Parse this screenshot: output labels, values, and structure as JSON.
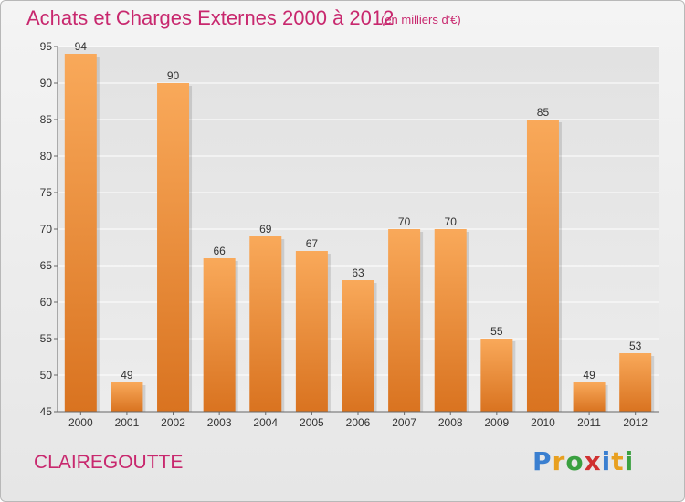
{
  "title": "Achats et Charges Externes 2000 à 2012",
  "unit": "(en milliers d'€)",
  "commune": "CLAIREGOUTTE",
  "logo": {
    "letters": [
      {
        "ch": "P",
        "color": "#3a7fd0"
      },
      {
        "ch": "r",
        "color": "#e8a020"
      },
      {
        "ch": "o",
        "color": "#3aa040"
      },
      {
        "ch": "x",
        "color": "#d03030"
      },
      {
        "ch": "i",
        "color": "#3a7fd0"
      },
      {
        "ch": "t",
        "color": "#e8a020"
      },
      {
        "ch": "i",
        "color": "#3aa040"
      }
    ]
  },
  "chart_data": {
    "type": "bar",
    "title": "Achats et Charges Externes 2000 à 2012",
    "categories": [
      "2000",
      "2001",
      "2002",
      "2003",
      "2004",
      "2005",
      "2006",
      "2007",
      "2008",
      "2009",
      "2010",
      "2011",
      "2012"
    ],
    "values": [
      94,
      49,
      90,
      66,
      69,
      67,
      63,
      70,
      70,
      55,
      85,
      49,
      53
    ],
    "ylim": [
      45,
      95
    ],
    "yticks": [
      45,
      50,
      55,
      60,
      65,
      70,
      75,
      80,
      85,
      90,
      95
    ],
    "grid": true,
    "bar_color_top": "#f9a95a",
    "bar_color_bottom": "#d97320"
  }
}
